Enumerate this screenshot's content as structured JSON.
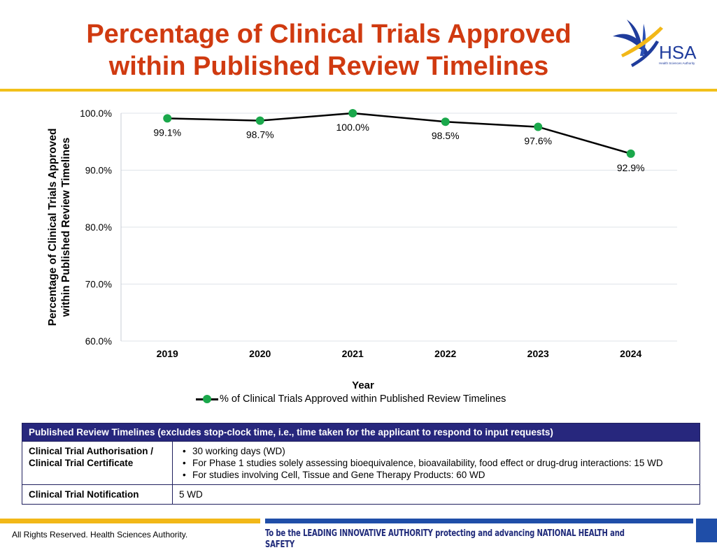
{
  "page": {
    "title_line1": "Percentage of Clinical Trials Approved",
    "title_line2": "within Published Review Timelines",
    "logo_text": "HSA",
    "logo_subtext": "Health Sciences Authority"
  },
  "colors": {
    "title": "#d03a10",
    "rule": "#f2c01a",
    "series_line": "#000000",
    "marker": "#1aa84b",
    "grid": "#dfe3ea",
    "table_header_bg": "#27277d",
    "bar_left": "#f2b818",
    "bar_right": "#1f4ea8",
    "footer_right_text": "#1f2a7a"
  },
  "chart_data": {
    "type": "line",
    "x": [
      "2019",
      "2020",
      "2021",
      "2022",
      "2023",
      "2024"
    ],
    "series": [
      {
        "name": "% of Clinical Trials Approved within Published Review Timelines",
        "values": [
          99.1,
          98.7,
          100.0,
          98.5,
          97.6,
          92.9
        ],
        "labels": [
          "99.1%",
          "98.7%",
          "100.0%",
          "98.5%",
          "97.6%",
          "92.9%"
        ]
      }
    ],
    "ylim": [
      60,
      100
    ],
    "yticks": [
      60,
      70,
      80,
      90,
      100
    ],
    "ytick_labels": [
      "60.0%",
      "70.0%",
      "80.0%",
      "90.0%",
      "100.0%"
    ],
    "xlabel": "Year",
    "ylabel_line1": "Percentage of Clinical Trials Approved",
    "ylabel_line2": "within Published Review Timelines",
    "grid": true,
    "legend": "bottom"
  },
  "table": {
    "header": "Published Review Timelines (excludes stop-clock time, i.e., time taken for the applicant to respond to input requests)",
    "rows": [
      {
        "label_line1": "Clinical Trial Authorisation /",
        "label_line2": "Clinical Trial Certificate",
        "items": [
          "30 working days (WD)",
          "For Phase 1 studies solely assessing bioequivalence, bioavailability, food effect or drug-drug interactions: 15 WD",
          "For studies involving Cell, Tissue and Gene Therapy Products: 60 WD"
        ]
      },
      {
        "label": "Clinical Trial Notification",
        "value": "5 WD"
      }
    ]
  },
  "footer": {
    "left": "All Rights Reserved. Health Sciences Authority.",
    "right": "To be the LEADING INNOVATIVE AUTHORITY protecting and advancing NATIONAL HEALTH and SAFETY"
  }
}
